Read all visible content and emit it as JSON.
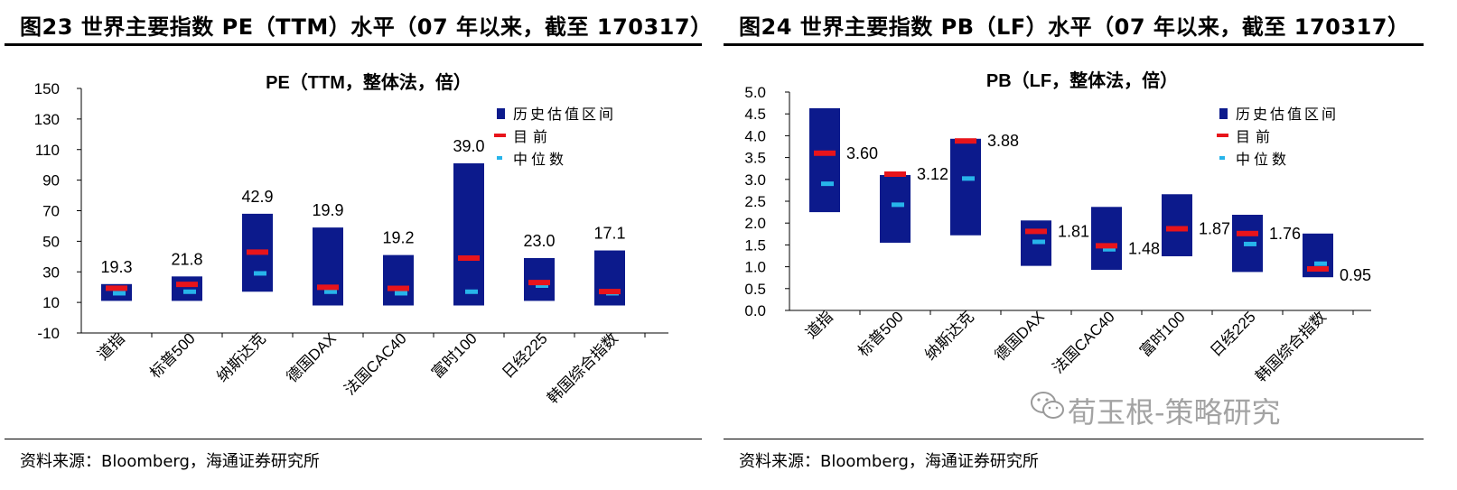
{
  "panels": [
    {
      "figure_title": "图23 世界主要指数 PE（TTM）水平（07 年以来，截至 170317）",
      "source": "资料来源：Bloomberg，海通证券研究所"
    },
    {
      "figure_title": "图24 世界主要指数 PB（LF）水平（07 年以来，截至 170317）",
      "source": "资料来源：Bloomberg，海通证券研究所"
    }
  ],
  "watermark": "荀玉根-策略研究",
  "colors": {
    "range_bar": "#0c1a8c",
    "current": "#e8141b",
    "median": "#27b4ea"
  },
  "chart_data": [
    {
      "type": "range_bar",
      "title": "PE（TTM，整体法，倍）",
      "xlabel": "",
      "ylabel": "",
      "ylim": [
        -10,
        150
      ],
      "yticks": [
        -10,
        10,
        30,
        50,
        70,
        90,
        110,
        130,
        150
      ],
      "legend": [
        "历史估值区间",
        "目前",
        "中位数"
      ],
      "legend_position": "top-right",
      "categories": [
        "道指",
        "标普500",
        "纳斯达克",
        "德国DAX",
        "法国CAC40",
        "富时100",
        "日经225",
        "韩国综合指数"
      ],
      "range_low": [
        11,
        11,
        17,
        8,
        8,
        8,
        11,
        8
      ],
      "range_high": [
        22,
        27,
        68,
        59,
        41,
        101,
        39,
        44
      ],
      "current": [
        19.3,
        21.8,
        42.9,
        19.9,
        19.2,
        39.0,
        23.0,
        17.1
      ],
      "median": [
        16,
        17,
        29,
        17,
        16,
        17,
        21,
        16
      ],
      "labels": [
        "19.3",
        "21.8",
        "42.9",
        "19.9",
        "19.2",
        "39.0",
        "23.0",
        "17.1"
      ]
    },
    {
      "type": "range_bar",
      "title": "PB（LF，整体法，倍）",
      "xlabel": "",
      "ylabel": "",
      "ylim": [
        0,
        5
      ],
      "yticks": [
        "0.0",
        "0.5",
        "1.0",
        "1.5",
        "2.0",
        "2.5",
        "3.0",
        "3.5",
        "4.0",
        "4.5",
        "5.0"
      ],
      "legend": [
        "历史估值区间",
        "目前",
        "中位数"
      ],
      "legend_position": "top-right",
      "categories": [
        "道指",
        "标普500",
        "纳斯达克",
        "德国DAX",
        "法国CAC40",
        "富时100",
        "日经225",
        "韩国综合指数"
      ],
      "range_low": [
        2.25,
        1.55,
        1.72,
        1.02,
        0.93,
        1.24,
        0.88,
        0.76
      ],
      "range_high": [
        4.63,
        3.1,
        3.93,
        2.06,
        2.37,
        2.66,
        2.19,
        1.76
      ],
      "current": [
        3.6,
        3.12,
        3.88,
        1.81,
        1.48,
        1.87,
        1.76,
        0.95
      ],
      "median": [
        2.9,
        2.42,
        3.02,
        1.57,
        1.4,
        1.87,
        1.52,
        1.07
      ],
      "labels": [
        "3.60",
        "3.12",
        "3.88",
        "1.81",
        "1.48",
        "1.87",
        "1.76",
        "0.95"
      ]
    }
  ]
}
